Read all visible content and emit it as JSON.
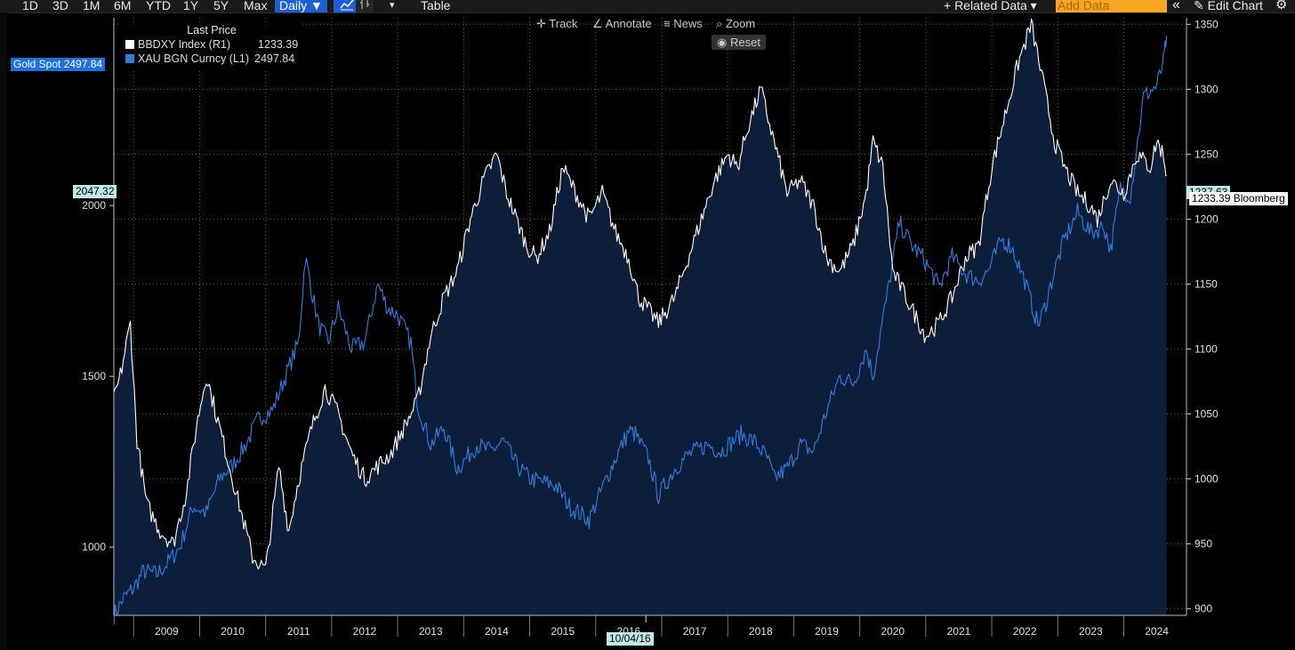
{
  "toolbar": {
    "periods": [
      "1D",
      "3D",
      "1M",
      "6M",
      "YTD",
      "1Y",
      "5Y",
      "Max"
    ],
    "frequency": "Daily ▼",
    "dropdown_arrow": "▾",
    "table_label": "Table",
    "related_data": "+ Related Data ▾",
    "add_data_placeholder": "Add Data",
    "collapse_icon": "«",
    "edit_chart": "✎ Edit Chart",
    "settings_icon": "gear-icon"
  },
  "chart_controls": {
    "track": "Track",
    "annotate": "Annotate",
    "news": "News",
    "zoom": "Zoom",
    "reset": "Reset"
  },
  "legend": {
    "header": "Last Price",
    "items": [
      {
        "label": "BBDXY Index  (R1)",
        "value": "1233.39",
        "color": "#ffffff"
      },
      {
        "label": "XAU BGN Curncy  (L1)",
        "value": "2497.84",
        "color": "#2f7de1"
      }
    ]
  },
  "tags": {
    "gold_spot": "Gold Spot 2497.84",
    "left_crosshair": "2047.32",
    "right_crosshair": "1237.63",
    "right_last": "1233.39 Bloomberg",
    "date_crosshair": "10/04/16"
  },
  "colors": {
    "gold_line": "#2f7de1",
    "dxy_line": "#ffffff",
    "area_fill": "#0d1e3a",
    "grid": "#5a5a5a",
    "accent": "#1f5fd6"
  },
  "chart_data": {
    "type": "line",
    "x_ticks": [
      "2009",
      "2010",
      "2011",
      "2012",
      "2013",
      "2014",
      "2015",
      "2016",
      "2017",
      "2018",
      "2019",
      "2020",
      "2021",
      "2022",
      "2023",
      "2024"
    ],
    "left_axis": {
      "ticks": [
        1000,
        1500,
        2000
      ],
      "range": [
        800,
        2550
      ],
      "series": "XAU BGN Curncy (L1)"
    },
    "right_axis": {
      "ticks": [
        900,
        950,
        1000,
        1050,
        1100,
        1150,
        1200,
        1250,
        1300,
        1350
      ],
      "range": [
        895,
        1355
      ],
      "series": "BBDXY Index (R1)"
    },
    "grid": true,
    "series": [
      {
        "name": "XAU BGN Curncy",
        "axis": "left",
        "color": "#2f7de1",
        "x": [
          2008.7,
          2008.85,
          2009.0,
          2009.15,
          2009.35,
          2009.5,
          2009.7,
          2009.9,
          2010.1,
          2010.3,
          2010.5,
          2010.7,
          2010.9,
          2011.1,
          2011.3,
          2011.5,
          2011.6,
          2011.67,
          2011.8,
          2011.95,
          2012.1,
          2012.3,
          2012.5,
          2012.7,
          2012.85,
          2013.0,
          2013.2,
          2013.3,
          2013.5,
          2013.7,
          2013.9,
          2014.0,
          2014.2,
          2014.4,
          2014.6,
          2014.8,
          2015.0,
          2015.2,
          2015.4,
          2015.6,
          2015.9,
          2016.05,
          2016.3,
          2016.5,
          2016.6,
          2016.8,
          2016.95,
          2017.2,
          2017.4,
          2017.7,
          2017.9,
          2018.2,
          2018.4,
          2018.6,
          2018.7,
          2018.9,
          2019.1,
          2019.3,
          2019.5,
          2019.7,
          2019.9,
          2020.1,
          2020.2,
          2020.4,
          2020.6,
          2020.8,
          2020.95,
          2021.1,
          2021.2,
          2021.4,
          2021.6,
          2021.8,
          2021.95,
          2022.15,
          2022.3,
          2022.5,
          2022.7,
          2022.8,
          2022.95,
          2023.1,
          2023.3,
          2023.5,
          2023.7,
          2023.8,
          2023.95,
          2024.1,
          2024.3,
          2024.5,
          2024.6,
          2024.65
        ],
        "y": [
          800,
          850,
          880,
          930,
          920,
          950,
          1000,
          1120,
          1100,
          1200,
          1240,
          1300,
          1380,
          1400,
          1500,
          1600,
          1850,
          1780,
          1650,
          1600,
          1700,
          1580,
          1600,
          1770,
          1700,
          1680,
          1600,
          1420,
          1300,
          1350,
          1230,
          1250,
          1300,
          1280,
          1310,
          1240,
          1200,
          1190,
          1180,
          1120,
          1080,
          1150,
          1260,
          1340,
          1330,
          1260,
          1150,
          1230,
          1270,
          1300,
          1280,
          1330,
          1310,
          1260,
          1200,
          1230,
          1300,
          1280,
          1400,
          1500,
          1480,
          1580,
          1500,
          1720,
          1950,
          1880,
          1850,
          1800,
          1760,
          1850,
          1800,
          1780,
          1810,
          1900,
          1880,
          1780,
          1650,
          1700,
          1810,
          1900,
          1980,
          1920,
          1940,
          1870,
          2050,
          2030,
          2320,
          2350,
          2420,
          2497.84
        ]
      },
      {
        "name": "BBDXY Index",
        "axis": "right",
        "color": "#ffffff",
        "x": [
          2008.7,
          2008.8,
          2008.95,
          2009.05,
          2009.2,
          2009.4,
          2009.6,
          2009.8,
          2009.95,
          2010.1,
          2010.3,
          2010.45,
          2010.6,
          2010.8,
          2011.0,
          2011.2,
          2011.35,
          2011.5,
          2011.7,
          2011.9,
          2012.1,
          2012.3,
          2012.5,
          2012.7,
          2012.9,
          2013.1,
          2013.3,
          2013.5,
          2013.7,
          2013.9,
          2014.1,
          2014.3,
          2014.5,
          2014.65,
          2014.8,
          2014.95,
          2015.1,
          2015.3,
          2015.5,
          2015.7,
          2015.9,
          2016.1,
          2016.3,
          2016.5,
          2016.65,
          2016.8,
          2016.95,
          2017.2,
          2017.4,
          2017.6,
          2017.8,
          2018.0,
          2018.15,
          2018.3,
          2018.5,
          2018.7,
          2018.9,
          2019.1,
          2019.3,
          2019.5,
          2019.7,
          2019.9,
          2020.1,
          2020.2,
          2020.35,
          2020.5,
          2020.7,
          2020.9,
          2021.0,
          2021.2,
          2021.4,
          2021.6,
          2021.8,
          2022.0,
          2022.2,
          2022.4,
          2022.6,
          2022.8,
          2022.95,
          2023.1,
          2023.3,
          2023.5,
          2023.6,
          2023.8,
          2024.0,
          2024.2,
          2024.4,
          2024.5,
          2024.6,
          2024.65
        ],
        "y": [
          1060,
          1080,
          1120,
          1030,
          980,
          960,
          950,
          990,
          1040,
          1080,
          1040,
          1010,
          980,
          940,
          930,
          1010,
          960,
          1000,
          1040,
          1070,
          1050,
          1020,
          1000,
          1010,
          1020,
          1040,
          1060,
          1110,
          1140,
          1160,
          1200,
          1230,
          1250,
          1220,
          1200,
          1180,
          1170,
          1190,
          1240,
          1220,
          1200,
          1220,
          1190,
          1170,
          1140,
          1130,
          1120,
          1140,
          1170,
          1200,
          1230,
          1250,
          1240,
          1270,
          1300,
          1260,
          1220,
          1230,
          1210,
          1170,
          1160,
          1180,
          1220,
          1260,
          1240,
          1160,
          1140,
          1120,
          1110,
          1120,
          1140,
          1170,
          1180,
          1240,
          1280,
          1320,
          1350,
          1300,
          1260,
          1240,
          1220,
          1210,
          1200,
          1230,
          1220,
          1250,
          1240,
          1260,
          1250,
          1233.39
        ]
      }
    ]
  }
}
